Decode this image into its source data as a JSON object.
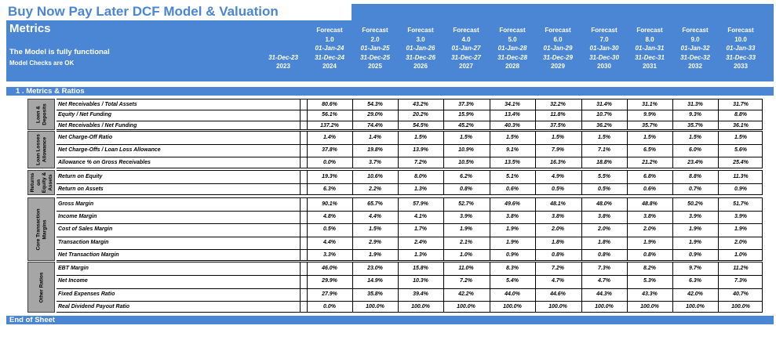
{
  "title": "Buy Now Pay Later DCF Model & Valuation",
  "header": {
    "metrics": "Metrics",
    "functional": "The Model is fully functional",
    "checks": "Model Checks are OK",
    "columns": [
      {
        "l1": "",
        "l2": "",
        "l3": "",
        "l4": "31-Dec-23",
        "l5": "2023"
      },
      {
        "l1": "Forecast",
        "l2": "1.0",
        "l3": "01-Jan-24",
        "l4": "31-Dec-24",
        "l5": "2024"
      },
      {
        "l1": "Forecast",
        "l2": "2.0",
        "l3": "01-Jan-25",
        "l4": "31-Dec-25",
        "l5": "2025"
      },
      {
        "l1": "Forecast",
        "l2": "3.0",
        "l3": "01-Jan-26",
        "l4": "31-Dec-26",
        "l5": "2026"
      },
      {
        "l1": "Forecast",
        "l2": "4.0",
        "l3": "01-Jan-27",
        "l4": "31-Dec-27",
        "l5": "2027"
      },
      {
        "l1": "Forecast",
        "l2": "5.0",
        "l3": "01-Jan-28",
        "l4": "31-Dec-28",
        "l5": "2028"
      },
      {
        "l1": "Forecast",
        "l2": "6.0",
        "l3": "01-Jan-29",
        "l4": "31-Dec-29",
        "l5": "2029"
      },
      {
        "l1": "Forecast",
        "l2": "7.0",
        "l3": "01-Jan-30",
        "l4": "31-Dec-30",
        "l5": "2030"
      },
      {
        "l1": "Forecast",
        "l2": "8.0",
        "l3": "01-Jan-31",
        "l4": "31-Dec-31",
        "l5": "2031"
      },
      {
        "l1": "Forecast",
        "l2": "9.0",
        "l3": "01-Jan-32",
        "l4": "31-Dec-32",
        "l5": "2032"
      },
      {
        "l1": "Forecast",
        "l2": "10.0",
        "l3": "01-Jan-33",
        "l4": "31-Dec-33",
        "l5": "2033"
      }
    ]
  },
  "section_title": "1 .  Metrics & Ratios",
  "groups": [
    {
      "label": [
        "Loan &",
        "Deposits"
      ],
      "rows": [
        {
          "label": "Net Receivables / Total Assets",
          "values": [
            "80.6%",
            "54.3%",
            "43.2%",
            "37.3%",
            "34.1%",
            "32.2%",
            "31.4%",
            "31.1%",
            "31.3%",
            "31.7%"
          ]
        },
        {
          "label": "Equity / Net Funding",
          "values": [
            "56.1%",
            "29.0%",
            "20.2%",
            "15.9%",
            "13.4%",
            "11.8%",
            "10.7%",
            "9.9%",
            "9.3%",
            "8.8%"
          ]
        },
        {
          "label": "Net Receivables / Net Funding",
          "values": [
            "137.2%",
            "74.4%",
            "54.5%",
            "45.2%",
            "40.3%",
            "37.5%",
            "36.2%",
            "35.7%",
            "35.7%",
            "36.1%"
          ]
        }
      ]
    },
    {
      "label": [
        "Loan Losses",
        "Allowance"
      ],
      "rows": [
        {
          "label": "Net Charge-Off Ratio",
          "values": [
            "1.4%",
            "1.4%",
            "1.5%",
            "1.5%",
            "1.5%",
            "1.5%",
            "1.5%",
            "1.5%",
            "1.5%",
            "1.5%"
          ]
        },
        {
          "label": "Net Charge-Offs / Loan Loss Allowance",
          "values": [
            "37.8%",
            "19.8%",
            "13.9%",
            "10.9%",
            "9.1%",
            "7.9%",
            "7.1%",
            "6.5%",
            "6.0%",
            "5.6%"
          ]
        },
        {
          "label": "Allowance % on Gross Receivables",
          "values": [
            "0.0%",
            "3.7%",
            "7.2%",
            "10.5%",
            "13.5%",
            "16.3%",
            "18.8%",
            "21.2%",
            "23.4%",
            "25.4%"
          ]
        }
      ]
    },
    {
      "label": [
        "Returns",
        "on",
        "Equity &",
        "Assets"
      ],
      "rows": [
        {
          "label": "Return on Equity",
          "values": [
            "19.3%",
            "10.6%",
            "8.0%",
            "6.2%",
            "5.1%",
            "4.9%",
            "5.5%",
            "6.8%",
            "8.8%",
            "11.3%"
          ]
        },
        {
          "label": "Return on Assets",
          "values": [
            "6.3%",
            "2.2%",
            "1.3%",
            "0.8%",
            "0.6%",
            "0.5%",
            "0.5%",
            "0.6%",
            "0.7%",
            "0.9%"
          ]
        }
      ]
    },
    {
      "label": [
        "Core Transaction",
        "Margins"
      ],
      "rows": [
        {
          "label": "Gross Margin",
          "values": [
            "90.1%",
            "65.7%",
            "57.9%",
            "52.7%",
            "49.6%",
            "48.1%",
            "48.0%",
            "48.8%",
            "50.2%",
            "51.7%"
          ]
        },
        {
          "label": "Income Margin",
          "values": [
            "4.8%",
            "4.4%",
            "4.1%",
            "3.9%",
            "3.8%",
            "3.8%",
            "3.8%",
            "3.8%",
            "3.9%",
            "3.9%"
          ]
        },
        {
          "label": "Cost of Sales Margin",
          "values": [
            "0.5%",
            "1.5%",
            "1.7%",
            "1.9%",
            "1.9%",
            "2.0%",
            "2.0%",
            "2.0%",
            "1.9%",
            "1.9%"
          ]
        },
        {
          "label": "Transaction Margin",
          "values": [
            "4.4%",
            "2.9%",
            "2.4%",
            "2.1%",
            "1.9%",
            "1.8%",
            "1.8%",
            "1.9%",
            "1.9%",
            "2.0%"
          ]
        },
        {
          "label": "Net Transaction Margin",
          "values": [
            "3.3%",
            "1.9%",
            "1.3%",
            "1.0%",
            "0.9%",
            "0.8%",
            "0.8%",
            "0.8%",
            "0.9%",
            "1.0%"
          ]
        }
      ]
    },
    {
      "label": [
        "Other Ratios"
      ],
      "rows": [
        {
          "label": "EBT Margin",
          "values": [
            "46.0%",
            "23.0%",
            "15.8%",
            "11.0%",
            "8.3%",
            "7.2%",
            "7.3%",
            "8.2%",
            "9.7%",
            "11.2%"
          ]
        },
        {
          "label": "Net Income",
          "values": [
            "29.9%",
            "14.9%",
            "10.3%",
            "7.2%",
            "5.4%",
            "4.7%",
            "4.7%",
            "5.3%",
            "6.3%",
            "7.3%"
          ]
        },
        {
          "label": "Fixed Expenses Ratio",
          "values": [
            "27.9%",
            "35.8%",
            "39.4%",
            "42.2%",
            "44.0%",
            "44.6%",
            "44.3%",
            "43.3%",
            "42.0%",
            "40.7%"
          ]
        },
        {
          "label": "Real Dividend Payout Ratio",
          "values": [
            "0.0%",
            "100.0%",
            "100.0%",
            "100.0%",
            "100.0%",
            "100.0%",
            "100.0%",
            "100.0%",
            "100.0%",
            "100.0%"
          ]
        }
      ]
    }
  ],
  "footer": "End of Sheet",
  "colors": {
    "accent": "#4a86d4",
    "group_fill": "#a6a6a6"
  }
}
